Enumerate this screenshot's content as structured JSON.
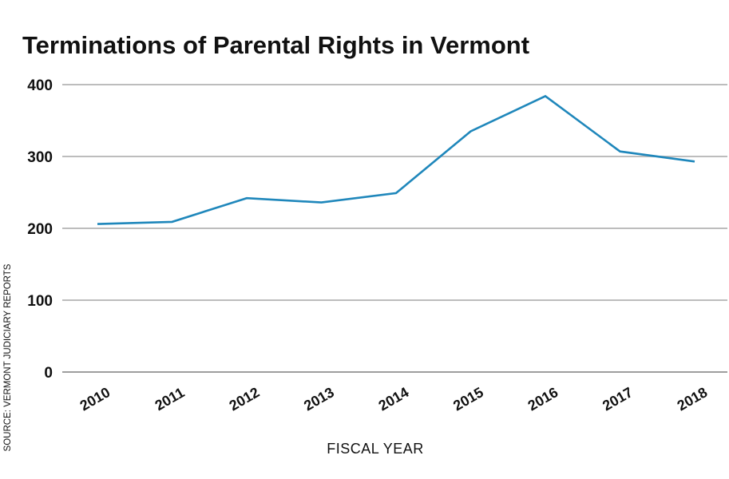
{
  "chart_data": {
    "type": "line",
    "title": "Terminations of Parental Rights in Vermont",
    "xlabel": "FISCAL YEAR",
    "ylabel": "",
    "source": "SOURCE: VERMONT JUDICIARY REPORTS",
    "categories": [
      "2010",
      "2011",
      "2012",
      "2013",
      "2014",
      "2015",
      "2016",
      "2017",
      "2018"
    ],
    "series": [
      {
        "name": "Terminations",
        "values": [
          206,
          209,
          242,
          236,
          249,
          335,
          384,
          307,
          293
        ]
      }
    ],
    "yticks": [
      0,
      100,
      200,
      300,
      400
    ],
    "ylim": [
      0,
      400
    ],
    "grid": true,
    "colors": {
      "line": "#1f87bb",
      "grid": "#bdbdbd",
      "text": "#111111"
    }
  }
}
